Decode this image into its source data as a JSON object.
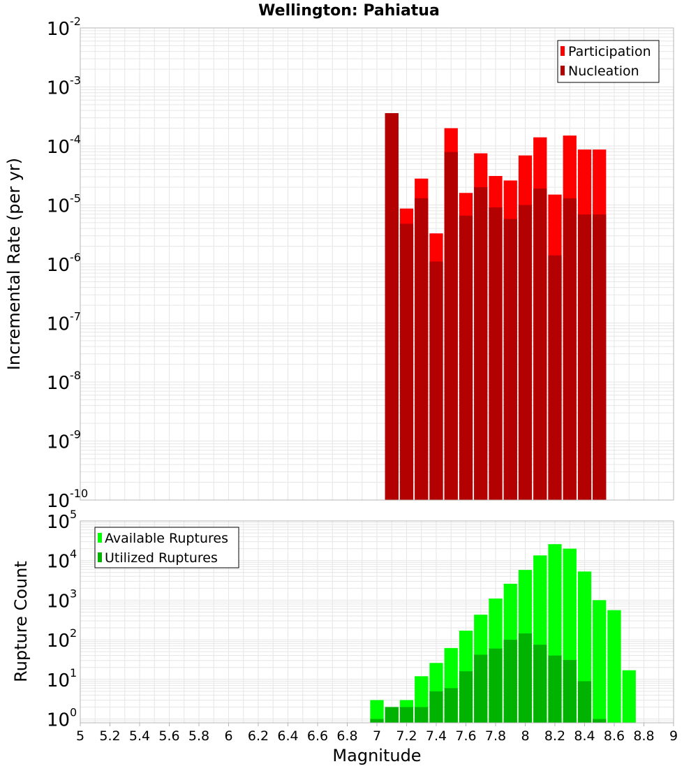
{
  "title": "Wellington: Pahiatua",
  "colors": {
    "participation": "#ff0000",
    "nucleation": "#b30000",
    "available": "#00ff00",
    "utilized": "#00b300",
    "grid": "#e6e6e6",
    "axis": "#b4b4b4"
  },
  "chart_data": [
    {
      "type": "bar",
      "name": "rates",
      "ylabel": "Incremental Rate (per yr)",
      "yscale": "log",
      "ylim": [
        1e-10,
        0.01
      ],
      "ytick_exponents": [
        -10,
        -9,
        -8,
        -7,
        -6,
        -5,
        -4,
        -3,
        -2
      ],
      "ytick_base": "10",
      "xlim": [
        5,
        9
      ],
      "bin_width": 0.1,
      "legend": [
        "Participation",
        "Nucleation"
      ],
      "legend_position": "top-right",
      "x": [
        7.1,
        7.2,
        7.3,
        7.4,
        7.5,
        7.6,
        7.7,
        7.8,
        7.9,
        8.0,
        8.1,
        8.2,
        8.3,
        8.4,
        8.5
      ],
      "series": [
        {
          "name": "Participation",
          "values": [
            0.00036,
            8.7e-06,
            2.8e-05,
            3.3e-06,
            0.0002,
            1.6e-05,
            7.5e-05,
            3.1e-05,
            2.6e-05,
            6.9e-05,
            0.00014,
            1.5e-05,
            0.00015,
            8.7e-05,
            8.7e-05
          ]
        },
        {
          "name": "Nucleation",
          "values": [
            0.00036,
            4.8e-06,
            1.3e-05,
            1.1e-06,
            7.9e-05,
            6.6e-06,
            2e-05,
            9.1e-06,
            5.8e-06,
            1e-05,
            1.9e-05,
            1.4e-06,
            1.3e-05,
            6.9e-06,
            6.9e-06
          ]
        }
      ]
    },
    {
      "type": "bar",
      "name": "ruptures",
      "ylabel": "Rupture Count",
      "xlabel": "Magnitude",
      "yscale": "log",
      "ylim": [
        0.8,
        100000.0
      ],
      "ytick_exponents": [
        0,
        1,
        2,
        3,
        4,
        5
      ],
      "ytick_base": "10",
      "xlim": [
        5,
        9
      ],
      "bin_width": 0.1,
      "xticks": [
        "5",
        "5.2",
        "5.4",
        "5.6",
        "5.8",
        "6",
        "6.2",
        "6.4",
        "6.6",
        "6.8",
        "7",
        "7.2",
        "7.4",
        "7.6",
        "7.8",
        "8",
        "8.2",
        "8.4",
        "8.6",
        "8.8",
        "9"
      ],
      "legend": [
        "Available Ruptures",
        "Utilized Ruptures"
      ],
      "legend_position": "top-left",
      "x": [
        7.0,
        7.1,
        7.2,
        7.3,
        7.4,
        7.5,
        7.6,
        7.7,
        7.8,
        7.9,
        8.0,
        8.1,
        8.2,
        8.3,
        8.4,
        8.5,
        8.6,
        8.7,
        8.8
      ],
      "series": [
        {
          "name": "Available Ruptures",
          "values": [
            3,
            2,
            3,
            12,
            26,
            62,
            170,
            430,
            1100,
            2600,
            5800,
            13500,
            26000,
            20000,
            5300,
            1000,
            560,
            17,
            0
          ]
        },
        {
          "name": "Utilized Ruptures",
          "values": [
            1,
            2,
            2,
            2,
            5,
            6,
            16,
            42,
            60,
            100,
            145,
            75,
            40,
            31,
            9,
            1,
            0,
            0,
            0
          ]
        }
      ]
    }
  ]
}
